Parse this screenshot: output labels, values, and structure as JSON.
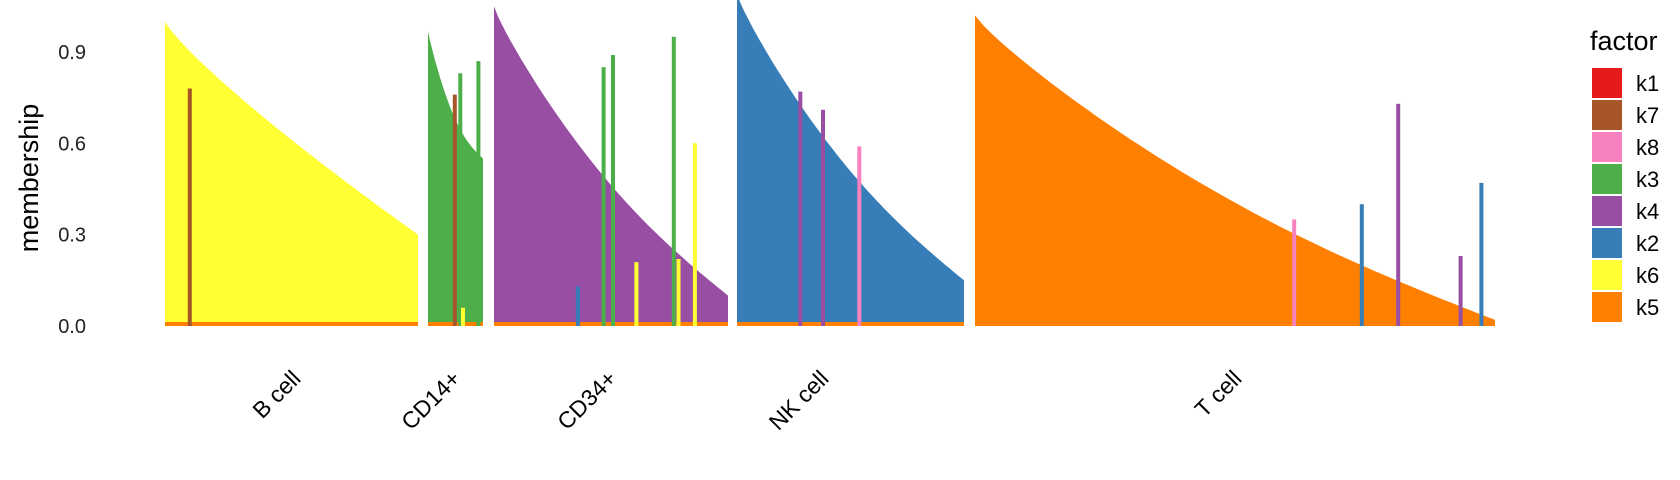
{
  "chart_data": {
    "type": "bar",
    "subtype": "stacked structure plot",
    "ylabel": "membership",
    "ylim": [
      0,
      1.05
    ],
    "yticks": [
      "0.0",
      "0.3",
      "0.6",
      "0.9"
    ],
    "legend": {
      "title": "factor",
      "position": "right",
      "entries": [
        {
          "label": "k1",
          "color": "#E41A1C"
        },
        {
          "label": "k7",
          "color": "#A65628"
        },
        {
          "label": "k8",
          "color": "#F781BF"
        },
        {
          "label": "k3",
          "color": "#4DAF4A"
        },
        {
          "label": "k4",
          "color": "#984EA3"
        },
        {
          "label": "k2",
          "color": "#377EB8"
        },
        {
          "label": "k6",
          "color": "#FFFF33"
        },
        {
          "label": "k5",
          "color": "#FF7F00"
        }
      ]
    },
    "groups": [
      {
        "label": "B cell",
        "dominant": "k6",
        "start": 1.0,
        "end": 0.3,
        "spikes": [
          {
            "at": 0.09,
            "value": 0.78,
            "factor": "k7"
          }
        ]
      },
      {
        "label": "CD14+",
        "dominant": "k3",
        "start": 0.97,
        "end": 0.55,
        "spikes": [
          {
            "at": 0.45,
            "value": 0.76,
            "factor": "k7"
          },
          {
            "at": 0.55,
            "value": 0.83,
            "factor": "k3"
          },
          {
            "at": 0.88,
            "value": 0.87,
            "factor": "k3"
          },
          {
            "at": 0.6,
            "value": 0.06,
            "factor": "k6"
          }
        ]
      },
      {
        "label": "CD34+",
        "dominant": "k4",
        "start": 1.05,
        "end": 0.1,
        "spikes": [
          {
            "at": 0.5,
            "value": 0.89,
            "factor": "k3"
          },
          {
            "at": 0.46,
            "value": 0.85,
            "factor": "k3"
          },
          {
            "at": 0.76,
            "value": 0.95,
            "factor": "k3"
          },
          {
            "at": 0.85,
            "value": 0.6,
            "factor": "k6"
          },
          {
            "at": 0.6,
            "value": 0.21,
            "factor": "k6"
          },
          {
            "at": 0.78,
            "value": 0.22,
            "factor": "k6"
          },
          {
            "at": 0.35,
            "value": 0.13,
            "factor": "k2"
          }
        ]
      },
      {
        "label": "NK cell",
        "dominant": "k2",
        "start": 1.09,
        "end": 0.15,
        "spikes": [
          {
            "at": 0.27,
            "value": 0.77,
            "factor": "k4"
          },
          {
            "at": 0.37,
            "value": 0.71,
            "factor": "k4"
          },
          {
            "at": 0.53,
            "value": 0.59,
            "factor": "k8"
          }
        ]
      },
      {
        "label": "T cell",
        "dominant": "k5",
        "start": 1.02,
        "end": 0.02,
        "spikes": [
          {
            "at": 0.81,
            "value": 0.73,
            "factor": "k4"
          },
          {
            "at": 0.74,
            "value": 0.4,
            "factor": "k2"
          },
          {
            "at": 0.97,
            "value": 0.47,
            "factor": "k2"
          },
          {
            "at": 0.93,
            "value": 0.23,
            "factor": "k4"
          },
          {
            "at": 0.61,
            "value": 0.35,
            "factor": "k8"
          }
        ]
      }
    ],
    "grid": false
  }
}
